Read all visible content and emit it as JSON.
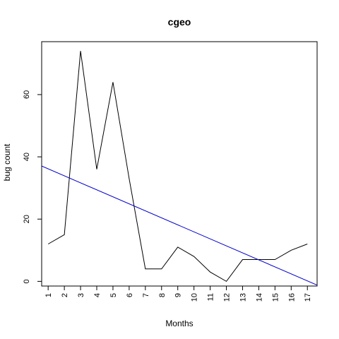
{
  "chart_data": {
    "type": "line",
    "title": "cgeo",
    "xlabel": "Months",
    "ylabel": "bug count",
    "x": [
      1,
      2,
      3,
      4,
      5,
      6,
      7,
      8,
      9,
      10,
      11,
      12,
      13,
      14,
      15,
      16,
      17
    ],
    "x_tick_labels": [
      "1",
      "2",
      "3",
      "4",
      "5",
      "6",
      "7",
      "8",
      "9",
      "10",
      "11",
      "12",
      "13",
      "14",
      "15",
      "16",
      "17"
    ],
    "y_tick_values": [
      0,
      20,
      40,
      60
    ],
    "y_tick_labels": [
      "0",
      "20",
      "40",
      "60"
    ],
    "xlim": [
      0.6,
      17.6
    ],
    "ylim": [
      -1.5,
      77
    ],
    "grid": false,
    "series": [
      {
        "values": [
          12,
          15,
          74,
          36,
          64,
          33,
          4,
          4,
          11,
          8,
          3,
          0,
          7,
          7,
          7,
          10,
          12
        ],
        "color": "#000000"
      }
    ],
    "trend_line": {
      "color": "#0000cc",
      "points": [
        [
          0,
          38.4
        ],
        [
          17.6,
          -1.2
        ]
      ]
    }
  }
}
